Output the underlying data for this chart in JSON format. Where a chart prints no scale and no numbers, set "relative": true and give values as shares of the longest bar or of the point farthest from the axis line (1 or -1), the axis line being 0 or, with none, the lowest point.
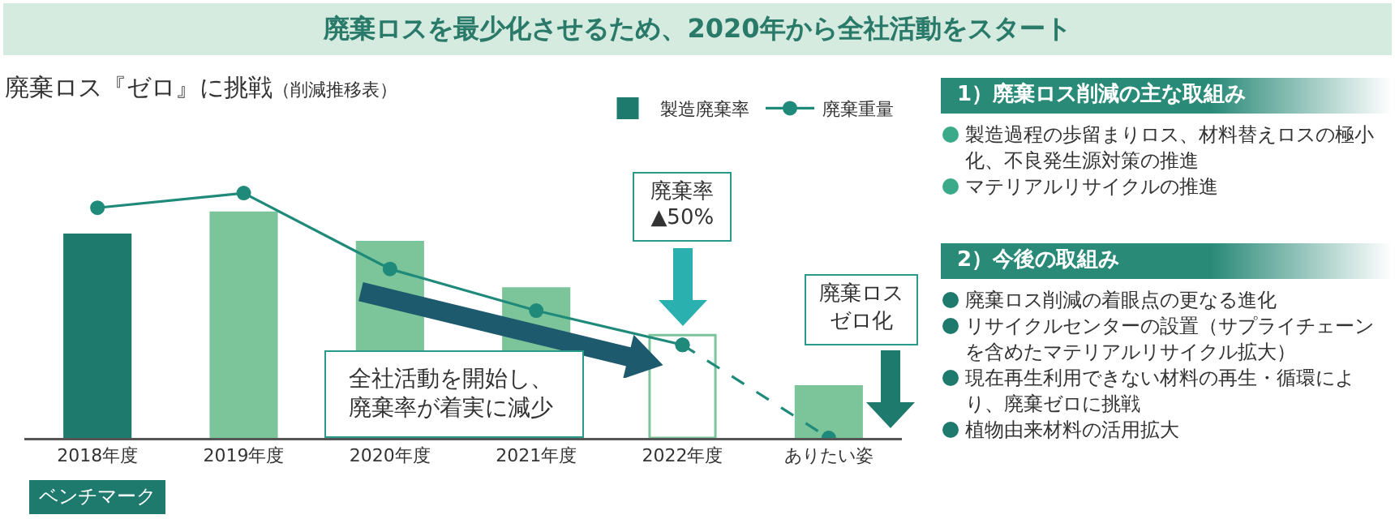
{
  "chart_data": [
    {
      "type": "other",
      "title": "廃棄ロスを最少化させるため、2020年から全社活動をスタート"
    },
    {
      "type": "bar",
      "title": "廃棄ロス『ゼロ』に挑戦",
      "subtitle": "（削減推移表）",
      "relative": true,
      "legend": "top right",
      "categories": [
        "2018年度",
        "2019年度",
        "2020年度",
        "2021年度",
        "2022年度",
        "ありたい姿"
      ],
      "series": [
        {
          "name": "製造廃棄率",
          "type": "bar",
          "color": "#7cc49a",
          "colors": [
            "#1f7a6e",
            "#7cc49a",
            "#7cc49a",
            "#7cc49a",
            "#ffffff",
            "#7cc49a"
          ],
          "values": [
            0.83,
            0.92,
            0.8,
            0.61,
            0.42,
            0.21
          ]
        },
        {
          "name": "廃棄重量",
          "type": "line",
          "color": "#1f8a7a",
          "marker": "circle",
          "line_style": "solid",
          "values": [
            0.94,
            1,
            0.69,
            0.52,
            0.38,
            null
          ]
        },
        {
          "type": "line",
          "color": "#1f8a7a",
          "marker": "circle",
          "line_style": "dashed",
          "values": [
            null,
            null,
            null,
            null,
            0.38,
            0
          ]
        }
      ],
      "annotations": [
        "廃棄率▲50%",
        "廃棄ロスゼロ化",
        "全社活動を開始し、廃棄率が着実に減少",
        "ベンチマーク"
      ]
    },
    {
      "type": "other",
      "title": "1）廃棄ロス削減の主な取組み",
      "annotations": [
        "製造過程の歩留まりロス、材料替えロスの極小化、不良発生源対策の推進",
        "マテリアルリサイクルの推進"
      ]
    },
    {
      "type": "other",
      "title": "2）今後の取組み",
      "annotations": [
        "廃棄ロス削減の着眼点の更なる進化",
        "リサイクルセンターの設置（サプライチェーンを含めたマテリアルリサイクル拡大）",
        "現在再生利用できない材料の再生・循環により、廃棄ゼロに挑戦",
        "植物由来材料の活用拡大"
      ]
    }
  ]
}
